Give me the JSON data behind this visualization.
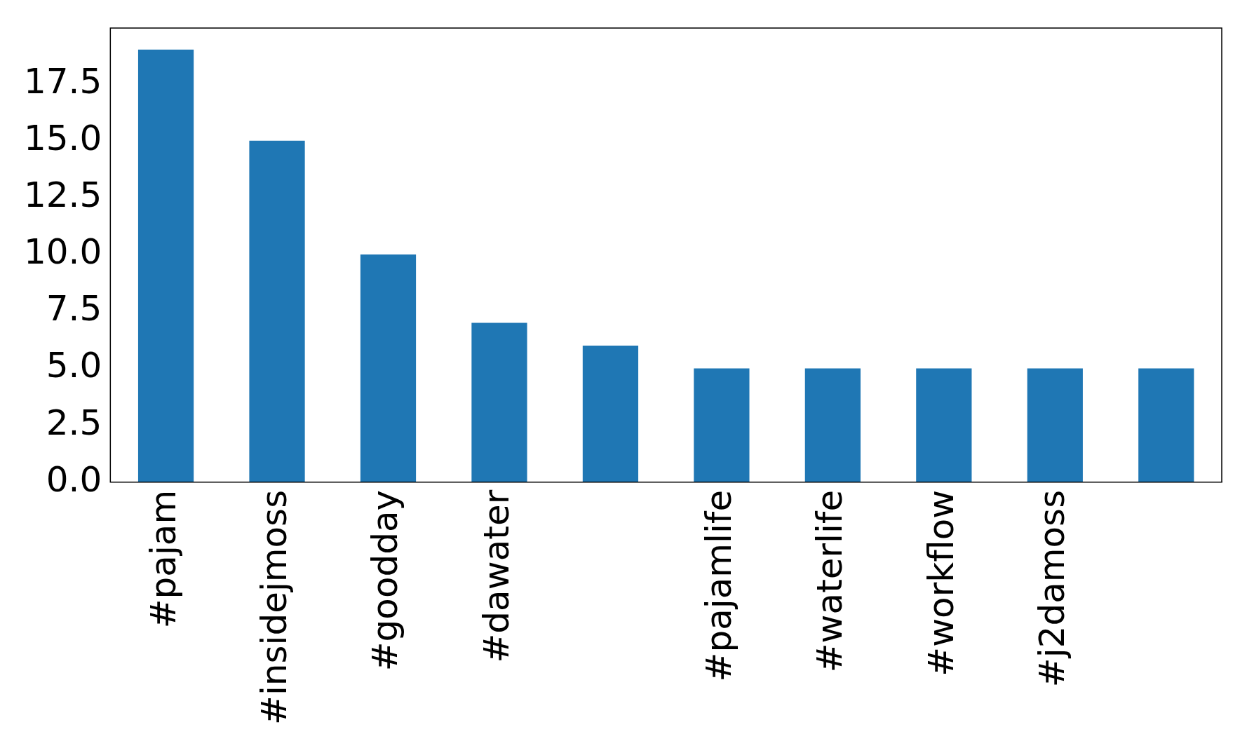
{
  "chart_data": {
    "type": "bar",
    "categories": [
      "#pajam",
      "#insidejmoss",
      "#goodday",
      "#dawater",
      null,
      "#pajamlife",
      "#waterlife",
      "#workflow",
      "#j2damoss",
      null
    ],
    "values": [
      19,
      15,
      10,
      7,
      6,
      5,
      5,
      5,
      5,
      5
    ],
    "color": "#1f77b4",
    "ylim": [
      0,
      19.95
    ],
    "yticks": [
      {
        "value": 0,
        "label": "0.0"
      },
      {
        "value": 2.5,
        "label": "2.5"
      },
      {
        "value": 5,
        "label": "5.0"
      },
      {
        "value": 7.5,
        "label": "7.5"
      },
      {
        "value": 10,
        "label": "10.0"
      },
      {
        "value": 12.5,
        "label": "12.5"
      },
      {
        "value": 15,
        "label": "15.0"
      },
      {
        "value": 17.5,
        "label": "17.5"
      }
    ],
    "grid": false,
    "legend": false
  }
}
